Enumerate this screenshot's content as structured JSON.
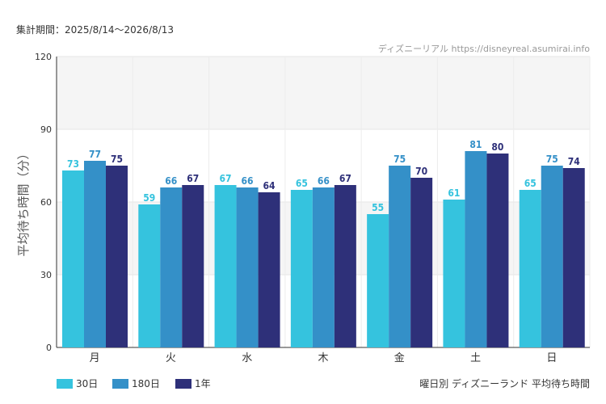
{
  "header": {
    "period_label": "集計期間：2025/8/14〜2026/8/13"
  },
  "credit": "ディズニーリアル https://disneyreal.asumirai.info",
  "subtitle": "曜日別 ディズニーランド 平均待ち時間",
  "colors": {
    "s30": "#35C3DE",
    "s180": "#3490C8",
    "s1y": "#2E3079"
  },
  "chart_data": {
    "type": "bar",
    "title": "",
    "xlabel": "",
    "ylabel": "平均待ち時間（分）",
    "ylim": [
      0,
      120
    ],
    "yticks": [
      0,
      30,
      60,
      90,
      120
    ],
    "grid": true,
    "legend": "bottom-left",
    "categories": [
      "月",
      "火",
      "水",
      "木",
      "金",
      "土",
      "日"
    ],
    "series": [
      {
        "name": "30日",
        "values": [
          73,
          59,
          67,
          65,
          55,
          61,
          65
        ]
      },
      {
        "name": "180日",
        "values": [
          77,
          66,
          66,
          66,
          75,
          81,
          75
        ]
      },
      {
        "name": "1年",
        "values": [
          75,
          67,
          64,
          67,
          70,
          80,
          74
        ]
      }
    ]
  }
}
